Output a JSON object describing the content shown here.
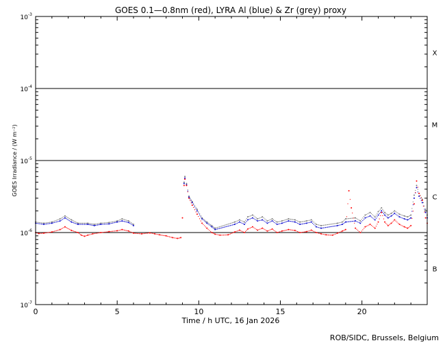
{
  "chart_data": {
    "type": "scatter",
    "title": "GOES 0.1—0.8nm (red), LYRA Al (blue) & Zr (grey) proxy",
    "xlabel": "Time / h UTC, 16 Jan 2026",
    "ylabel": "GOES Irradiance / (W m⁻²)",
    "credit": "ROB/SIDC, Brussels, Belgium",
    "xlim": [
      0,
      24
    ],
    "ylim": [
      1e-07,
      0.001
    ],
    "y_scale": "log",
    "x_ticks": [
      0,
      5,
      10,
      15,
      20
    ],
    "x_tick_labels": [
      "0",
      "5",
      "10",
      "15",
      "20"
    ],
    "y_ticks": [
      {
        "base": "10",
        "exp": "-7",
        "value": 1e-07
      },
      {
        "base": "10",
        "exp": "-6",
        "value": 1e-06
      },
      {
        "base": "10",
        "exp": "-5",
        "value": 1e-05
      },
      {
        "base": "10",
        "exp": "-4",
        "value": 0.0001
      },
      {
        "base": "10",
        "exp": "-3",
        "value": 0.001
      }
    ],
    "flare_classes": [
      {
        "label": "B",
        "value": 3.16e-07
      },
      {
        "label": "C",
        "value": 3.16e-06
      },
      {
        "label": "M",
        "value": 3.16e-05
      },
      {
        "label": "X",
        "value": 0.000316
      }
    ],
    "threshold_lines": [
      1e-06,
      1e-05,
      0.0001
    ],
    "colors": {
      "red": "#ff0000",
      "blue": "#0000cc",
      "grey": "#777777"
    },
    "series": [
      {
        "name": "GOES",
        "color": "red",
        "x": [
          0,
          0.2,
          0.5,
          1,
          1.5,
          1.8,
          2.2,
          2.6,
          2.8,
          3.0,
          3.2,
          3.5,
          4,
          4.5,
          5,
          5.3,
          5.7,
          6.0,
          6.5,
          7,
          7.3,
          7.6,
          8.0,
          8.4,
          8.7,
          8.9,
          9.0,
          9.1,
          9.15,
          9.25,
          9.4,
          9.6,
          9.9,
          10.2,
          10.5,
          10.8,
          11.0,
          11.3,
          11.8,
          12.2,
          12.5,
          12.8,
          13.0,
          13.3,
          13.6,
          13.9,
          14.2,
          14.5,
          14.8,
          15.1,
          15.5,
          15.9,
          16.2,
          16.6,
          16.9,
          17.2,
          17.5,
          17.8,
          18.2,
          18.5,
          18.8,
          19.0,
          19.2,
          19.35,
          19.6,
          19.9,
          20.2,
          20.5,
          20.8,
          21.0,
          21.2,
          21.4,
          21.6,
          21.8,
          22.0,
          22.3,
          22.6,
          22.8,
          23.0,
          23.2,
          23.35,
          23.5,
          23.7,
          23.9,
          24
        ],
        "y": [
          1e-06,
          9.7e-07,
          9.8e-07,
          1.02e-06,
          1.1e-06,
          1.2e-06,
          1.07e-06,
          1e-06,
          9.2e-07,
          8.9e-07,
          9.2e-07,
          9.6e-07,
          1e-06,
          1.03e-06,
          1.06e-06,
          1.1e-06,
          1.05e-06,
          9.8e-07,
          9.6e-07,
          9.9e-07,
          9.6e-07,
          9.3e-07,
          9e-07,
          8.5e-07,
          8.3e-07,
          8.5e-07,
          1.6e-06,
          4.5e-06,
          5.5e-06,
          4.5e-06,
          3e-06,
          2.4e-06,
          1.8e-06,
          1.35e-06,
          1.15e-06,
          1e-06,
          9.5e-07,
          9.2e-07,
          9.3e-07,
          1.02e-06,
          1.08e-06,
          1e-06,
          1.12e-06,
          1.2e-06,
          1.08e-06,
          1.15e-06,
          1.05e-06,
          1.12e-06,
          1e-06,
          1.05e-06,
          1.1e-06,
          1.07e-06,
          1e-06,
          1.03e-06,
          1.08e-06,
          1e-06,
          9.6e-07,
          9.3e-07,
          9.2e-07,
          9.8e-07,
          1.05e-06,
          1.1e-06,
          3.8e-06,
          2.2e-06,
          1.15e-06,
          1e-06,
          1.2e-06,
          1.3e-06,
          1.15e-06,
          1.4e-06,
          1.9e-06,
          1.4e-06,
          1.25e-06,
          1.35e-06,
          1.5e-06,
          1.3e-06,
          1.2e-06,
          1.15e-06,
          1.25e-06,
          2.5e-06,
          5.2e-06,
          3.5e-06,
          2.8e-06,
          1.6e-06,
          1.35e-06
        ]
      },
      {
        "name": "LYRA Al",
        "color": "blue",
        "x": [
          0,
          0.5,
          1,
          1.5,
          1.8,
          2.2,
          2.6,
          3.2,
          3.6,
          4,
          4.5,
          5,
          5.3,
          5.7,
          6.0,
          9.1,
          9.15,
          9.25,
          9.4,
          9.6,
          9.9,
          10.2,
          10.5,
          10.8,
          11.0,
          12.2,
          12.5,
          12.8,
          13.0,
          13.3,
          13.6,
          13.9,
          14.2,
          14.5,
          14.8,
          15.1,
          15.5,
          15.9,
          16.2,
          16.6,
          16.9,
          17.2,
          17.5,
          18.5,
          18.8,
          19.0,
          19.6,
          19.9,
          20.2,
          20.5,
          20.8,
          21.0,
          21.2,
          21.4,
          21.6,
          21.8,
          22.0,
          22.3,
          22.6,
          22.8,
          23.0,
          23.2,
          23.35,
          23.5,
          23.7,
          23.9,
          24
        ],
        "y": [
          1.35e-06,
          1.3e-06,
          1.35e-06,
          1.45e-06,
          1.6e-06,
          1.4e-06,
          1.3e-06,
          1.3e-06,
          1.25e-06,
          1.3e-06,
          1.32e-06,
          1.4e-06,
          1.45e-06,
          1.38e-06,
          1.25e-06,
          4.8e-06,
          5.7e-06,
          4.6e-06,
          3.1e-06,
          2.6e-06,
          2e-06,
          1.55e-06,
          1.35e-06,
          1.2e-06,
          1.1e-06,
          1.3e-06,
          1.4e-06,
          1.3e-06,
          1.5e-06,
          1.6e-06,
          1.45e-06,
          1.5e-06,
          1.35e-06,
          1.45e-06,
          1.3e-06,
          1.35e-06,
          1.45e-06,
          1.4e-06,
          1.3e-06,
          1.35e-06,
          1.4e-06,
          1.2e-06,
          1.15e-06,
          1.25e-06,
          1.3e-06,
          1.4e-06,
          1.45e-06,
          1.35e-06,
          1.6e-06,
          1.7e-06,
          1.5e-06,
          1.75e-06,
          2e-06,
          1.75e-06,
          1.6e-06,
          1.7e-06,
          1.85e-06,
          1.65e-06,
          1.55e-06,
          1.5e-06,
          1.6e-06,
          3e-06,
          4.2e-06,
          3.2e-06,
          2.6e-06,
          1.9e-06,
          1.6e-06
        ]
      },
      {
        "name": "LYRA Zr",
        "color": "grey",
        "x": [
          0,
          0.5,
          1,
          1.5,
          1.8,
          2.2,
          2.6,
          3.2,
          3.6,
          4,
          4.5,
          5,
          5.3,
          5.7,
          6.0,
          9.1,
          9.15,
          9.25,
          9.4,
          9.6,
          9.9,
          10.2,
          10.5,
          10.8,
          11.0,
          12.2,
          12.5,
          12.8,
          13.0,
          13.3,
          13.6,
          13.9,
          14.2,
          14.5,
          14.8,
          15.1,
          15.5,
          15.9,
          16.2,
          16.6,
          16.9,
          17.2,
          17.5,
          18.5,
          18.8,
          19.0,
          19.6,
          19.9,
          20.2,
          20.5,
          20.8,
          21.0,
          21.2,
          21.4,
          21.6,
          21.8,
          22.0,
          22.3,
          22.6,
          22.8,
          23.0,
          23.2,
          23.35,
          23.5,
          23.7,
          23.9,
          24
        ],
        "y": [
          1.4e-06,
          1.35e-06,
          1.4e-06,
          1.55e-06,
          1.7e-06,
          1.5e-06,
          1.35e-06,
          1.35e-06,
          1.3e-06,
          1.35e-06,
          1.38e-06,
          1.45e-06,
          1.55e-06,
          1.45e-06,
          1.3e-06,
          5e-06,
          6e-06,
          4.8e-06,
          3.2e-06,
          2.7e-06,
          2.1e-06,
          1.6e-06,
          1.4e-06,
          1.25e-06,
          1.15e-06,
          1.4e-06,
          1.5e-06,
          1.4e-06,
          1.65e-06,
          1.75e-06,
          1.55e-06,
          1.65e-06,
          1.45e-06,
          1.55e-06,
          1.4e-06,
          1.45e-06,
          1.55e-06,
          1.5e-06,
          1.4e-06,
          1.45e-06,
          1.5e-06,
          1.3e-06,
          1.25e-06,
          1.35e-06,
          1.4e-06,
          1.55e-06,
          1.6e-06,
          1.45e-06,
          1.75e-06,
          1.9e-06,
          1.65e-06,
          1.95e-06,
          2.2e-06,
          1.9e-06,
          1.75e-06,
          1.85e-06,
          2e-06,
          1.8e-06,
          1.7e-06,
          1.65e-06,
          1.75e-06,
          3.3e-06,
          4.5e-06,
          3.5e-06,
          2.9e-06,
          2.1e-06,
          1.75e-06
        ]
      }
    ]
  }
}
